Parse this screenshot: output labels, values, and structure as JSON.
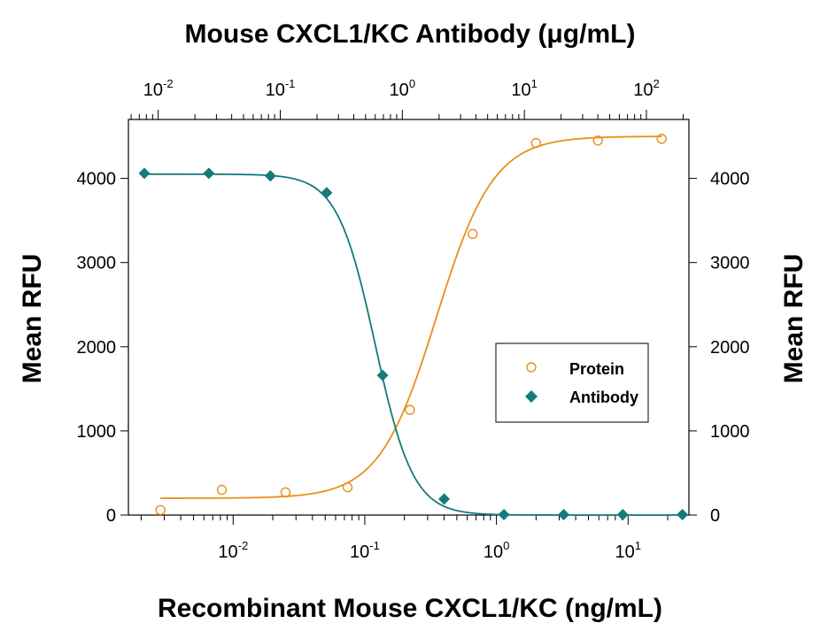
{
  "chart_data": {
    "type": "scatter",
    "title": "",
    "top_axis_label": "Mouse CXCL1/KC Antibody (μg/mL)",
    "xlabel": "Recombinant Mouse CXCL1/KC (ng/mL)",
    "ylabel": "Mean RFU",
    "ylabel_right": "Mean RFU",
    "x_scale": "log",
    "x_range": [
      0.0016,
      29
    ],
    "top_x_range": [
      0.0057,
      223
    ],
    "ylim": [
      0,
      4700
    ],
    "y_ticks": [
      0,
      1000,
      2000,
      3000,
      4000
    ],
    "x_ticks_bottom": [
      {
        "value": 0.01,
        "base": "10",
        "exp": "-2"
      },
      {
        "value": 0.1,
        "base": "10",
        "exp": "-1"
      },
      {
        "value": 1,
        "base": "10",
        "exp": "0"
      },
      {
        "value": 10,
        "base": "10",
        "exp": "1"
      }
    ],
    "x_ticks_top": [
      {
        "value": 0.01,
        "base": "10",
        "exp": "-2"
      },
      {
        "value": 0.1,
        "base": "10",
        "exp": "-1"
      },
      {
        "value": 1,
        "base": "10",
        "exp": "0"
      },
      {
        "value": 10,
        "base": "10",
        "exp": "1"
      },
      {
        "value": 100,
        "base": "10",
        "exp": "2"
      }
    ],
    "grid": false,
    "legend_position": "right-middle",
    "series": [
      {
        "name": "Protein",
        "axis": "bottom",
        "marker": "open-circle",
        "color": "#E8901A",
        "points": [
          {
            "x": 0.0028,
            "y": 60
          },
          {
            "x": 0.0082,
            "y": 300
          },
          {
            "x": 0.025,
            "y": 270
          },
          {
            "x": 0.074,
            "y": 330
          },
          {
            "x": 0.22,
            "y": 1250
          },
          {
            "x": 0.66,
            "y": 3340
          },
          {
            "x": 2.0,
            "y": 4420
          },
          {
            "x": 5.9,
            "y": 4450
          },
          {
            "x": 18,
            "y": 4470
          }
        ],
        "fit": {
          "bottom": 200,
          "top": 4500,
          "ec50": 0.35,
          "hill": 2.0
        }
      },
      {
        "name": "Antibody",
        "axis": "top",
        "marker": "filled-diamond",
        "color": "#157A7A",
        "points": [
          {
            "x": 0.0077,
            "y": 4060
          },
          {
            "x": 0.026,
            "y": 4060
          },
          {
            "x": 0.083,
            "y": 4030
          },
          {
            "x": 0.24,
            "y": 3830
          },
          {
            "x": 0.69,
            "y": 1660
          },
          {
            "x": 2.2,
            "y": 190
          },
          {
            "x": 6.8,
            "y": 5
          },
          {
            "x": 21,
            "y": 5
          },
          {
            "x": 64,
            "y": 5
          },
          {
            "x": 197,
            "y": 5
          }
        ],
        "fit": {
          "bottom": 0,
          "top": 4050,
          "ic50": 0.6,
          "hill": -2.8
        }
      }
    ]
  }
}
